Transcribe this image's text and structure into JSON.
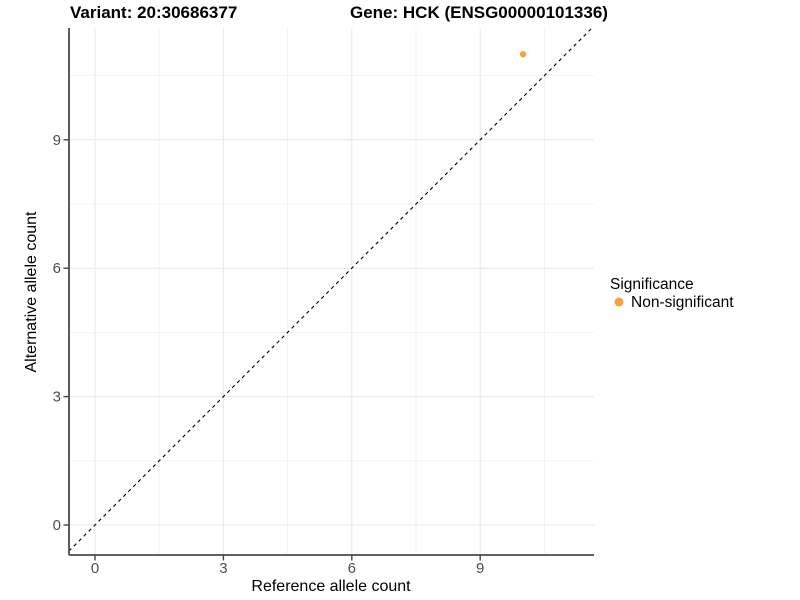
{
  "titles": {
    "variant": "Variant: 20:30686377",
    "gene": "Gene: HCK (ENSG00000101336)"
  },
  "axes": {
    "x_label": "Reference allele count",
    "y_label": "Alternative allele count"
  },
  "legend": {
    "title": "Significance",
    "items": [
      {
        "label": "Non-significant",
        "color": "#F9A23B"
      }
    ]
  },
  "chart_data": {
    "type": "scatter",
    "title": "Variant: 20:30686377 — Gene: HCK (ENSG00000101336)",
    "xlabel": "Reference allele count",
    "ylabel": "Alternative allele count",
    "x_ticks": [
      0,
      3,
      6,
      9
    ],
    "y_ticks": [
      0,
      3,
      6,
      9
    ],
    "x_minor": [
      1.5,
      4.5,
      7.5,
      10.5
    ],
    "y_minor": [
      1.5,
      4.5,
      7.5,
      10.5
    ],
    "xlim": [
      -0.61,
      11.66
    ],
    "ylim": [
      -0.7,
      11.61
    ],
    "grid": true,
    "legend_position": "right",
    "identity_line": {
      "slope": 1,
      "intercept": 0,
      "style": "dashed",
      "color": "#000000"
    },
    "series": [
      {
        "name": "Non-significant",
        "color": "#F9A23B",
        "points": [
          {
            "x": 10,
            "y": 11
          }
        ]
      }
    ]
  }
}
